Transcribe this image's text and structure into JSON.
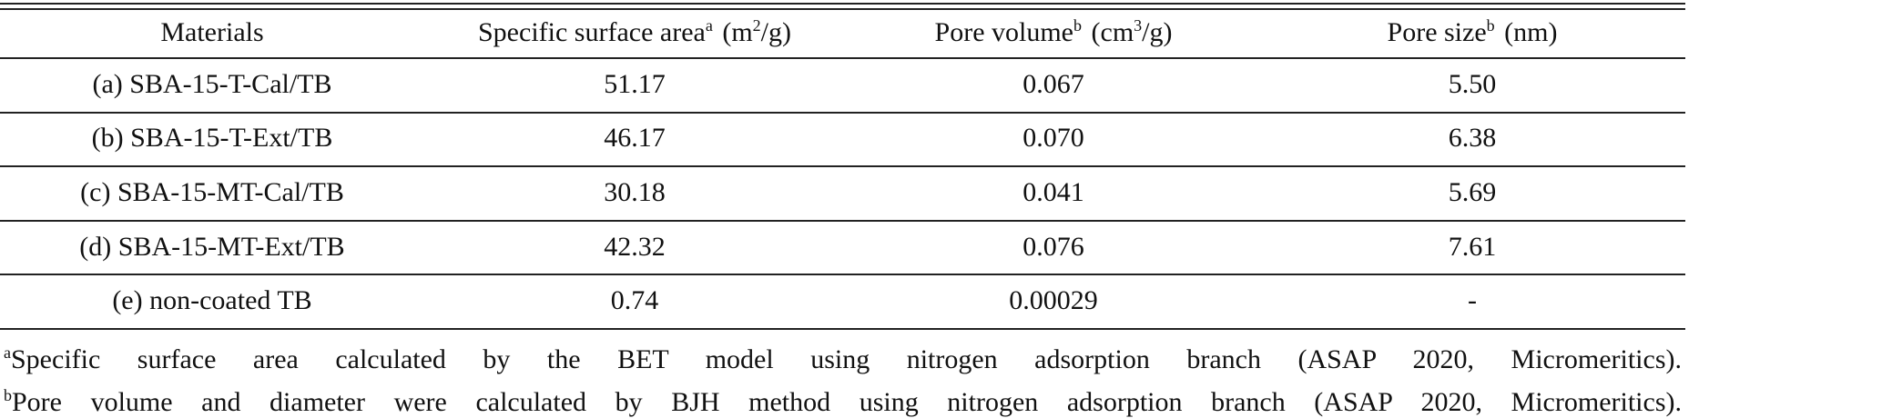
{
  "table": {
    "header": [
      {
        "label": "Materials"
      },
      {
        "label": "Specific surface area",
        "sup": "a",
        "unit_pre": "(m",
        "unit_sup": "2",
        "unit_post": "/g)"
      },
      {
        "label": "Pore volume",
        "sup": "b",
        "unit_pre": "(cm",
        "unit_sup": "3",
        "unit_post": "/g)"
      },
      {
        "label": "Pore size",
        "sup": "b",
        "unit_pre": "(nm)"
      }
    ],
    "rows": [
      [
        "(a) SBA-15-T-Cal/TB",
        "51.17",
        "0.067",
        "5.50"
      ],
      [
        "(b) SBA-15-T-Ext/TB",
        "46.17",
        "0.070",
        "6.38"
      ],
      [
        "(c) SBA-15-MT-Cal/TB",
        "30.18",
        "0.041",
        "5.69"
      ],
      [
        "(d) SBA-15-MT-Ext/TB",
        "42.32",
        "0.076",
        "7.61"
      ],
      [
        "(e) non-coated TB",
        "0.74",
        "0.00029",
        "-"
      ]
    ],
    "notes": [
      {
        "mark": "a",
        "text": "Specific surface area calculated by the BET model using nitrogen adsorption branch (ASAP 2020, Micromeritics)."
      },
      {
        "mark": "b",
        "text": "Pore volume and diameter were calculated by BJH method using nitrogen adsorption branch (ASAP 2020, Micromeritics)."
      }
    ]
  }
}
